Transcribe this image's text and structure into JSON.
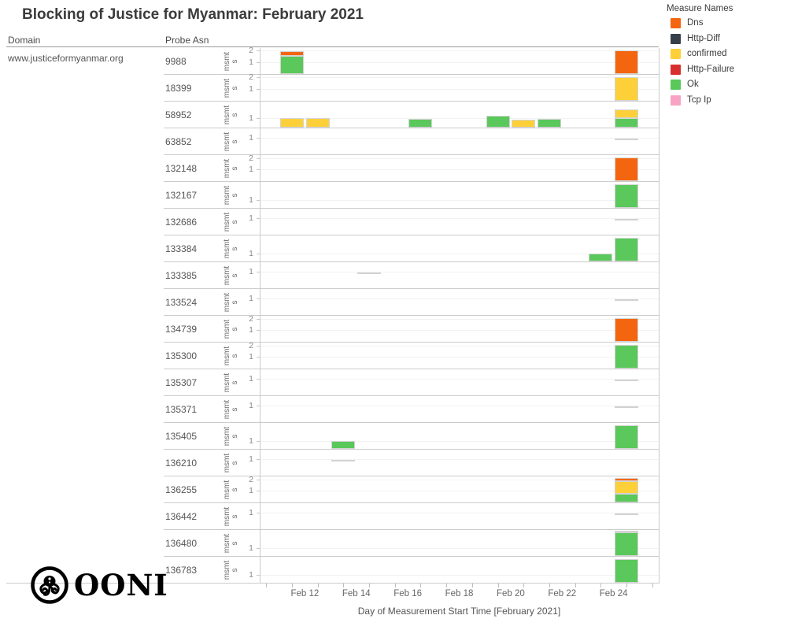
{
  "title": "Blocking of Justice for Myanmar: February 2021",
  "columns": {
    "domain_header": "Domain",
    "asn_header": "Probe Asn"
  },
  "domain": "www.justiceformyanmar.org",
  "y_unit_label": "msmt\ns",
  "logo_text": "OONI",
  "legend": {
    "title": "Measure Names",
    "items": [
      {
        "label": "Dns",
        "color": "#f4650f"
      },
      {
        "label": "Http-Diff",
        "color": "#36404a"
      },
      {
        "label": "confirmed",
        "color": "#fdd03a"
      },
      {
        "label": "Http-Failure",
        "color": "#d8302f"
      },
      {
        "label": "Ok",
        "color": "#5ac85a"
      },
      {
        "label": "Tcp Ip",
        "color": "#f8a3c3"
      }
    ]
  },
  "x_axis": {
    "title": "Day of Measurement Start Time [February 2021]",
    "tick_labels": [
      "Feb 12",
      "Feb 14",
      "Feb 16",
      "Feb 18",
      "Feb 20",
      "Feb 22",
      "Feb 24"
    ]
  },
  "chart_data": {
    "type": "bar",
    "stacked": true,
    "title": "Blocking of Justice for Myanmar: February 2021",
    "xlabel": "Day of Measurement Start Time [February 2021]",
    "ylabel": "msmts",
    "legend_position": "top-right",
    "grid": "faint horizontal per-row",
    "domain": "www.justiceformyanmar.org",
    "measures": [
      "Dns",
      "Http-Diff",
      "confirmed",
      "Http-Failure",
      "Ok",
      "Tcp Ip"
    ],
    "rows": [
      {
        "asn": "9988",
        "y_ticks": [
          1,
          2
        ],
        "axis_max": 2.2,
        "bars": [
          {
            "day": "Feb 12",
            "segments": [
              {
                "measure": "Ok",
                "msmts": 1.55
              },
              {
                "measure": "Dns",
                "msmts": 0.4
              }
            ]
          },
          {
            "day": "Feb 25",
            "segments": [
              {
                "measure": "Dns",
                "msmts": 2.05
              }
            ]
          }
        ],
        "marks": []
      },
      {
        "asn": "18399",
        "y_ticks": [
          1,
          2
        ],
        "axis_max": 2.2,
        "bars": [
          {
            "day": "Feb 25",
            "segments": [
              {
                "measure": "confirmed",
                "msmts": 2.05
              }
            ]
          }
        ],
        "marks": []
      },
      {
        "asn": "58952",
        "y_ticks": [
          1
        ],
        "axis_max": 2.7,
        "bars": [
          {
            "day": "Feb 12",
            "segments": [
              {
                "measure": "confirmed",
                "msmts": 1.0
              }
            ]
          },
          {
            "day": "Feb 13",
            "segments": [
              {
                "measure": "confirmed",
                "msmts": 1.0
              }
            ]
          },
          {
            "day": "Feb 17",
            "segments": [
              {
                "measure": "Ok",
                "msmts": 0.85
              }
            ]
          },
          {
            "day": "Feb 20",
            "segments": [
              {
                "measure": "Ok",
                "msmts": 1.25
              }
            ]
          },
          {
            "day": "Feb 21",
            "segments": [
              {
                "measure": "confirmed",
                "msmts": 0.8
              }
            ]
          },
          {
            "day": "Feb 22",
            "segments": [
              {
                "measure": "Ok",
                "msmts": 0.9
              }
            ]
          },
          {
            "day": "Feb 25",
            "segments": [
              {
                "measure": "Ok",
                "msmts": 0.95
              },
              {
                "measure": "confirmed",
                "msmts": 0.95
              }
            ]
          }
        ],
        "marks": []
      },
      {
        "asn": "63852",
        "y_ticks": [
          1
        ],
        "axis_max": 1.55,
        "bars": [],
        "marks": [
          {
            "day": "Feb 25",
            "msmts": 0.95
          }
        ]
      },
      {
        "asn": "132148",
        "y_ticks": [
          1,
          2
        ],
        "axis_max": 2.2,
        "bars": [
          {
            "day": "Feb 25",
            "segments": [
              {
                "measure": "Dns",
                "msmts": 2.05
              }
            ]
          }
        ],
        "marks": []
      },
      {
        "asn": "132167",
        "y_ticks": [
          1
        ],
        "axis_max": 3.3,
        "bars": [
          {
            "day": "Feb 25",
            "segments": [
              {
                "measure": "Ok",
                "msmts": 3.1
              }
            ]
          }
        ],
        "marks": []
      },
      {
        "asn": "132686",
        "y_ticks": [
          1
        ],
        "axis_max": 1.55,
        "bars": [],
        "marks": [
          {
            "day": "Feb 25",
            "msmts": 0.95
          }
        ]
      },
      {
        "asn": "133384",
        "y_ticks": [
          1
        ],
        "axis_max": 3.3,
        "bars": [
          {
            "day": "Feb 24",
            "segments": [
              {
                "measure": "Ok",
                "msmts": 1.0
              }
            ]
          },
          {
            "day": "Feb 25",
            "segments": [
              {
                "measure": "Ok",
                "msmts": 3.1
              }
            ]
          }
        ],
        "marks": []
      },
      {
        "asn": "133385",
        "y_ticks": [
          1
        ],
        "axis_max": 1.55,
        "bars": [],
        "marks": [
          {
            "day": "Feb 15",
            "msmts": 0.95
          }
        ]
      },
      {
        "asn": "133524",
        "y_ticks": [
          1
        ],
        "axis_max": 1.55,
        "bars": [],
        "marks": [
          {
            "day": "Feb 25",
            "msmts": 0.95
          }
        ]
      },
      {
        "asn": "134739",
        "y_ticks": [
          1,
          2
        ],
        "axis_max": 2.2,
        "bars": [
          {
            "day": "Feb 25",
            "segments": [
              {
                "measure": "Dns",
                "msmts": 2.05
              }
            ]
          }
        ],
        "marks": []
      },
      {
        "asn": "135300",
        "y_ticks": [
          1,
          2
        ],
        "axis_max": 2.2,
        "bars": [
          {
            "day": "Feb 25",
            "segments": [
              {
                "measure": "Ok",
                "msmts": 2.05
              }
            ]
          }
        ],
        "marks": []
      },
      {
        "asn": "135307",
        "y_ticks": [
          1
        ],
        "axis_max": 1.55,
        "bars": [],
        "marks": [
          {
            "day": "Feb 25",
            "msmts": 0.95
          }
        ]
      },
      {
        "asn": "135371",
        "y_ticks": [
          1
        ],
        "axis_max": 1.55,
        "bars": [],
        "marks": [
          {
            "day": "Feb 25",
            "msmts": 0.95
          }
        ]
      },
      {
        "asn": "135405",
        "y_ticks": [
          1
        ],
        "axis_max": 3.3,
        "bars": [
          {
            "day": "Feb 14",
            "segments": [
              {
                "measure": "Ok",
                "msmts": 1.0
              }
            ]
          },
          {
            "day": "Feb 25",
            "segments": [
              {
                "measure": "Ok",
                "msmts": 3.1
              }
            ]
          }
        ],
        "marks": []
      },
      {
        "asn": "136210",
        "y_ticks": [
          1
        ],
        "axis_max": 1.55,
        "bars": [],
        "marks": [
          {
            "day": "Feb 14",
            "msmts": 0.95
          }
        ]
      },
      {
        "asn": "136255",
        "y_ticks": [
          1,
          2
        ],
        "axis_max": 2.2,
        "bars": [
          {
            "day": "Feb 25",
            "segments": [
              {
                "measure": "Ok",
                "msmts": 0.72
              },
              {
                "measure": "confirmed",
                "msmts": 1.1
              },
              {
                "measure": "Dns",
                "msmts": 0.3
              }
            ]
          }
        ],
        "marks": []
      },
      {
        "asn": "136442",
        "y_ticks": [
          1
        ],
        "axis_max": 1.55,
        "bars": [],
        "marks": [
          {
            "day": "Feb 25",
            "msmts": 0.95
          }
        ]
      },
      {
        "asn": "136480",
        "y_ticks": [
          1
        ],
        "axis_max": 3.3,
        "bars": [
          {
            "day": "Feb 25",
            "segments": [
              {
                "measure": "Ok",
                "msmts": 3.1
              }
            ]
          }
        ],
        "marks": [
          {
            "day": "Feb 25",
            "msmts": 3.25
          }
        ]
      },
      {
        "asn": "136783",
        "y_ticks": [
          1
        ],
        "axis_max": 3.3,
        "bars": [
          {
            "day": "Feb 25",
            "segments": [
              {
                "measure": "Ok",
                "msmts": 3.1
              }
            ]
          }
        ],
        "marks": []
      }
    ]
  }
}
